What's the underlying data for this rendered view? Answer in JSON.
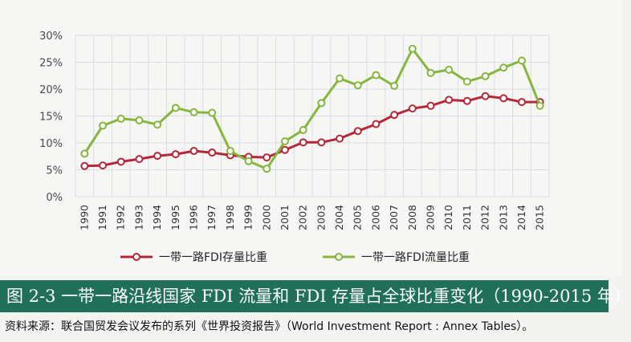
{
  "chart_data": {
    "type": "line",
    "categories": [
      "1990",
      "1991",
      "1992",
      "1993",
      "1994",
      "1995",
      "1996",
      "1997",
      "1998",
      "1999",
      "2000",
      "2001",
      "2002",
      "2003",
      "2004",
      "2005",
      "2006",
      "2007",
      "2008",
      "2009",
      "2010",
      "2011",
      "2012",
      "2013",
      "2014",
      "2015"
    ],
    "y_ticks": [
      "0%",
      "5%",
      "10%",
      "15%",
      "20%",
      "25%",
      "30%"
    ],
    "ylim": [
      0,
      30
    ],
    "grid": true,
    "legend_position": "bottom",
    "series": [
      {
        "name": "一带一路FDI存量比重",
        "color": "#b5283a",
        "values": [
          5.7,
          5.8,
          6.5,
          7.0,
          7.6,
          7.9,
          8.5,
          8.2,
          7.7,
          7.4,
          7.3,
          8.7,
          10.1,
          10.1,
          10.8,
          12.2,
          13.5,
          15.2,
          16.4,
          16.9,
          18.0,
          17.8,
          18.7,
          18.3,
          17.6,
          17.6
        ]
      },
      {
        "name": "一带一路FDI流量比重",
        "color": "#85b63d",
        "values": [
          8.0,
          13.2,
          14.5,
          14.2,
          13.4,
          16.5,
          15.7,
          15.6,
          8.5,
          6.6,
          5.2,
          10.3,
          12.4,
          17.4,
          22.0,
          20.7,
          22.6,
          20.6,
          27.5,
          23.0,
          23.6,
          21.4,
          22.4,
          24.0,
          25.3,
          16.9
        ]
      }
    ]
  },
  "caption": {
    "title": "图 2-3  一带一路沿线国家 FDI 流量和 FDI 存量占全球比重变化（1990-2015 年）",
    "source": "资料来源：联合国贸发会议发布的系列《世界投资报告》（World Investment Report : Annex Tables）。"
  }
}
